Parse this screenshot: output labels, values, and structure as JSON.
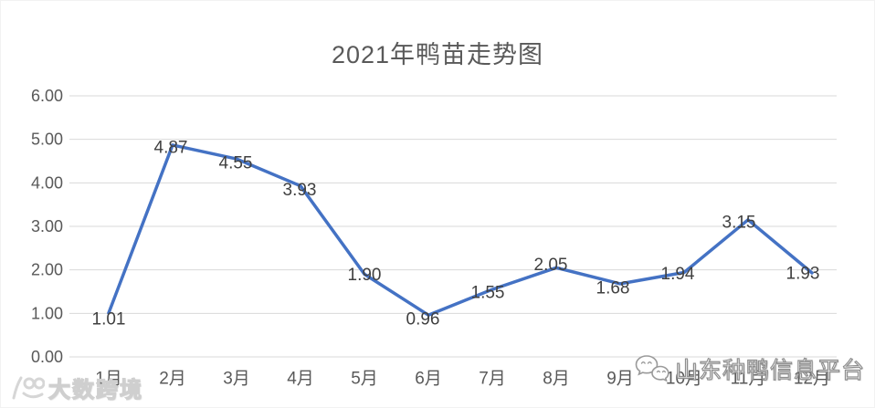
{
  "chart_data": {
    "type": "line",
    "title": "2021年鸭苗走势图",
    "categories": [
      "1月",
      "2月",
      "3月",
      "4月",
      "5月",
      "6月",
      "7月",
      "8月",
      "9月",
      "10月",
      "11月",
      "12月"
    ],
    "values": [
      1.01,
      4.87,
      4.55,
      3.93,
      1.9,
      0.96,
      1.55,
      2.05,
      1.68,
      1.94,
      3.15,
      1.93
    ],
    "data_labels": [
      "1.01",
      "4.87",
      "4.55",
      "3.93",
      "1.90",
      "0.96",
      "1.55",
      "2.05",
      "1.68",
      "1.94",
      "3.15",
      "1.93"
    ],
    "y_tick_labels": [
      "0.00",
      "1.00",
      "2.00",
      "3.00",
      "4.00",
      "5.00",
      "6.00"
    ],
    "ylim": [
      0,
      6
    ],
    "xlabel": "",
    "ylabel": "",
    "grid": true,
    "legend": "none",
    "line_color": "#4472C4",
    "gridline_color": "#D9D9D9",
    "title_color": "#595959",
    "axis_label_color": "#595959",
    "data_label_color": "#404040"
  },
  "watermarks": {
    "bottom_left": {
      "icon": "dashu-logo-icon",
      "text": "大数跨境"
    },
    "bottom_right": {
      "icon": "wechat-icon",
      "text": "山东种鸭信息平台"
    }
  }
}
